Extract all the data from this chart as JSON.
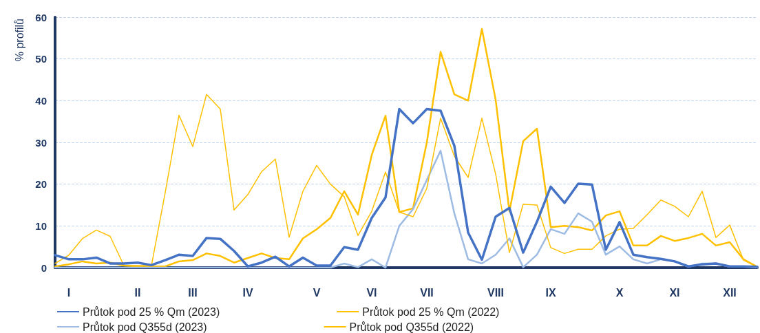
{
  "chart_data": {
    "type": "line",
    "ylabel": "% profilů",
    "categories": [
      null,
      "I",
      null,
      null,
      null,
      null,
      "II",
      null,
      null,
      null,
      "III",
      null,
      null,
      null,
      "IV",
      null,
      null,
      null,
      null,
      "V",
      null,
      null,
      null,
      "VI",
      null,
      null,
      null,
      "VII",
      null,
      null,
      null,
      null,
      "VIII",
      null,
      null,
      null,
      "IX",
      null,
      null,
      null,
      null,
      "X",
      null,
      null,
      null,
      "XI",
      null,
      null,
      null,
      "XII",
      null,
      null
    ],
    "ylim": [
      0,
      60
    ],
    "yticks": [
      0,
      10,
      20,
      30,
      40,
      50,
      60
    ],
    "grid": "y",
    "legend": "bottom",
    "marker": "none",
    "line_style": "solid",
    "series": [
      {
        "name": "Průtok pod 25 % Qm (2023)",
        "color": "#4472c4",
        "values": [
          3,
          2,
          2,
          2.4,
          1,
          1,
          1.2,
          0.6,
          1.8,
          3.1,
          2.8,
          7.1,
          6.9,
          4,
          0.3,
          1.2,
          2.6,
          0.3,
          2.4,
          0.5,
          0.5,
          4.9,
          4.3,
          11.9,
          16.8,
          38,
          34.6,
          38,
          37.6,
          29.2,
          8.4,
          1.9,
          12.2,
          14.3,
          3.6,
          11,
          19.4,
          15.5,
          20.1,
          19.9,
          4.3,
          10.9,
          3.1,
          2.5,
          2.1,
          1.5,
          0.3,
          0.8,
          1,
          0.3,
          0.3,
          0.2
        ]
      },
      {
        "name": "Průtok pod 25 % Qm (2022)",
        "color": "#ffc000",
        "values": [
          1,
          3,
          7,
          9,
          7.5,
          0.5,
          0.5,
          0.5,
          18,
          36.5,
          29,
          41.5,
          38,
          13.8,
          17.5,
          23,
          26,
          7.3,
          18.3,
          24.5,
          20,
          17,
          7.7,
          13.5,
          22.9,
          13.3,
          12.2,
          19,
          35.8,
          26.7,
          21.6,
          35.8,
          22.4,
          3.6,
          15.2,
          15,
          4.8,
          3.4,
          4.4,
          4.4,
          7.6,
          9.2,
          9.4,
          12.7,
          16.2,
          14.7,
          12.2,
          18.3,
          7.2,
          10.2,
          1.8,
          0.2
        ]
      },
      {
        "name": "Průtok pod Q355d (2023)",
        "color": "#9dbbe3",
        "values": [
          0,
          0,
          0,
          0,
          0,
          0,
          0,
          0,
          0,
          0,
          0,
          0,
          0,
          0,
          0,
          0,
          0,
          0,
          0,
          0,
          0,
          1,
          0.1,
          2,
          0,
          10,
          14,
          21,
          28,
          13,
          2,
          1,
          3.1,
          7,
          0.1,
          3.1,
          9.2,
          8.1,
          13,
          11,
          3.1,
          5.1,
          2,
          1,
          2,
          1.5,
          0.2,
          1,
          1,
          0.2,
          0.2,
          0
        ]
      },
      {
        "name": "Průtok pod Q355d (2022)",
        "color": "#ffc000",
        "values": [
          0.3,
          0.8,
          1.5,
          1,
          1.2,
          0.5,
          0.3,
          0.3,
          0.3,
          1.5,
          1.8,
          3.4,
          2.8,
          1.2,
          2.3,
          3.4,
          2.3,
          2,
          7,
          9.2,
          11.9,
          18.3,
          12.7,
          27,
          36.4,
          13.3,
          14.2,
          30,
          51.7,
          41.5,
          40,
          57.2,
          40.2,
          13.5,
          30.3,
          33.3,
          9.7,
          10,
          9.7,
          8.9,
          12.5,
          13.5,
          5.3,
          5.3,
          7.6,
          6.4,
          7.1,
          8.1,
          5.3,
          6.1,
          2,
          0.2
        ]
      }
    ]
  }
}
